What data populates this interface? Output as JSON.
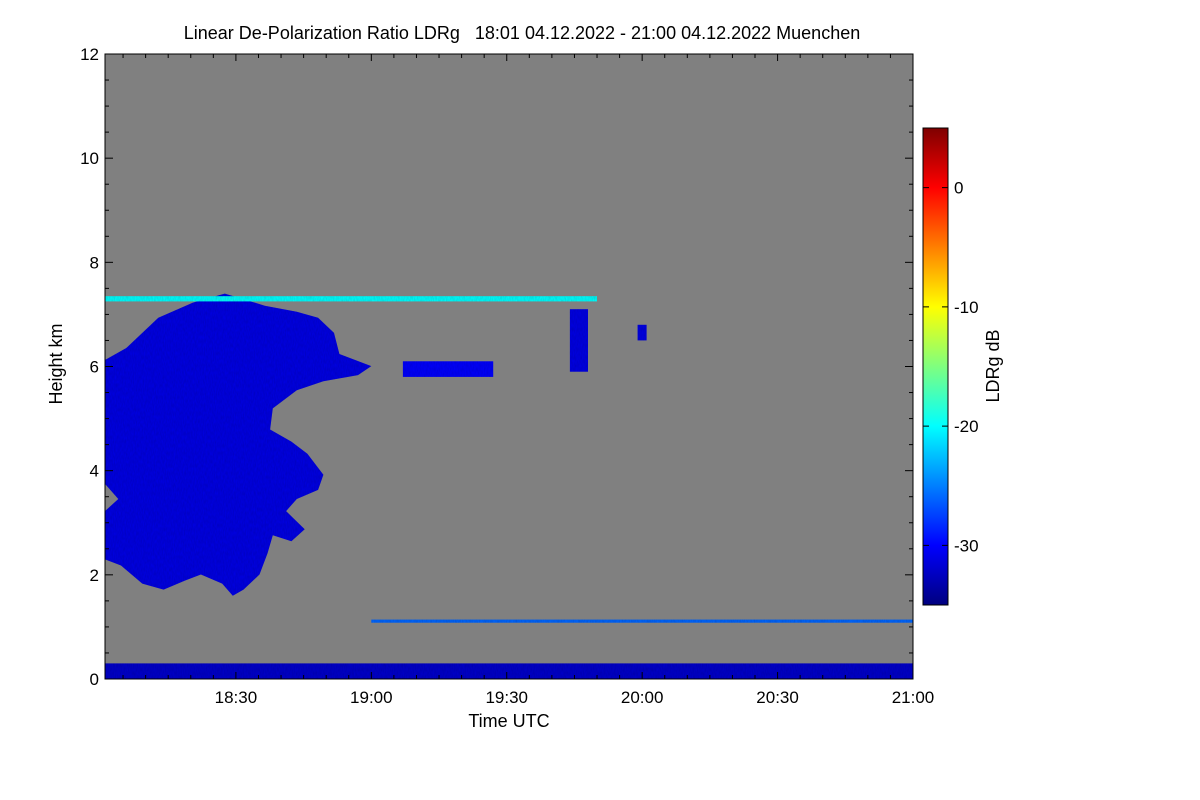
{
  "chart_data": {
    "type": "heatmap",
    "title": "Linear De-Polarization Ratio LDRg   18:01 04.12.2022 - 21:00 04.12.2022 Muenchen",
    "xlabel": "Time UTC",
    "ylabel": "Height km",
    "colorbar_label": "LDRg dB",
    "xlim": [
      "18:01",
      "21:00"
    ],
    "ylim": [
      0,
      12
    ],
    "x_ticks": [
      "18:30",
      "19:00",
      "19:30",
      "20:00",
      "20:30",
      "21:00"
    ],
    "y_ticks": [
      "0",
      "2",
      "4",
      "6",
      "8",
      "10",
      "12"
    ],
    "colorbar_range": [
      -35,
      5
    ],
    "colorbar_ticks": [
      "0",
      "-10",
      "-20",
      "-30"
    ],
    "colormap": [
      "#00007f",
      "#0000ff",
      "#007fff",
      "#00ffff",
      "#7fff7f",
      "#ffff00",
      "#ff7f00",
      "#ff0000",
      "#7f0000"
    ],
    "background_color": "#808080",
    "features": [
      {
        "name": "main depolarizing cloud",
        "time_start": "18:01",
        "time_end": "19:00",
        "height_min_km": 1.6,
        "height_max_km": 7.4,
        "ldr_db": -31
      },
      {
        "name": "cloud patch",
        "time_start": "19:44",
        "time_end": "19:48",
        "height_min_km": 5.9,
        "height_max_km": 7.1,
        "ldr_db": -31
      },
      {
        "name": "small patch",
        "time_start": "19:59",
        "time_end": "20:01",
        "height_min_km": 6.5,
        "height_max_km": 6.8,
        "ldr_db": -31
      },
      {
        "name": "layer",
        "time_start": "19:07",
        "time_end": "19:27",
        "height_min_km": 5.8,
        "height_max_km": 6.1,
        "ldr_db": -30
      },
      {
        "name": "thin layer",
        "time_start": "18:01",
        "time_end": "19:50",
        "height_min_km": 7.25,
        "height_max_km": 7.35,
        "ldr_db": -20
      },
      {
        "name": "thin layer",
        "time_start": "19:00",
        "time_end": "21:00",
        "height_min_km": 1.08,
        "height_max_km": 1.14,
        "ldr_db": -26
      },
      {
        "name": "near-ground layer",
        "time_start": "18:01",
        "time_end": "21:00",
        "height_min_km": 0.0,
        "height_max_km": 0.3,
        "ldr_db": -32
      }
    ]
  }
}
